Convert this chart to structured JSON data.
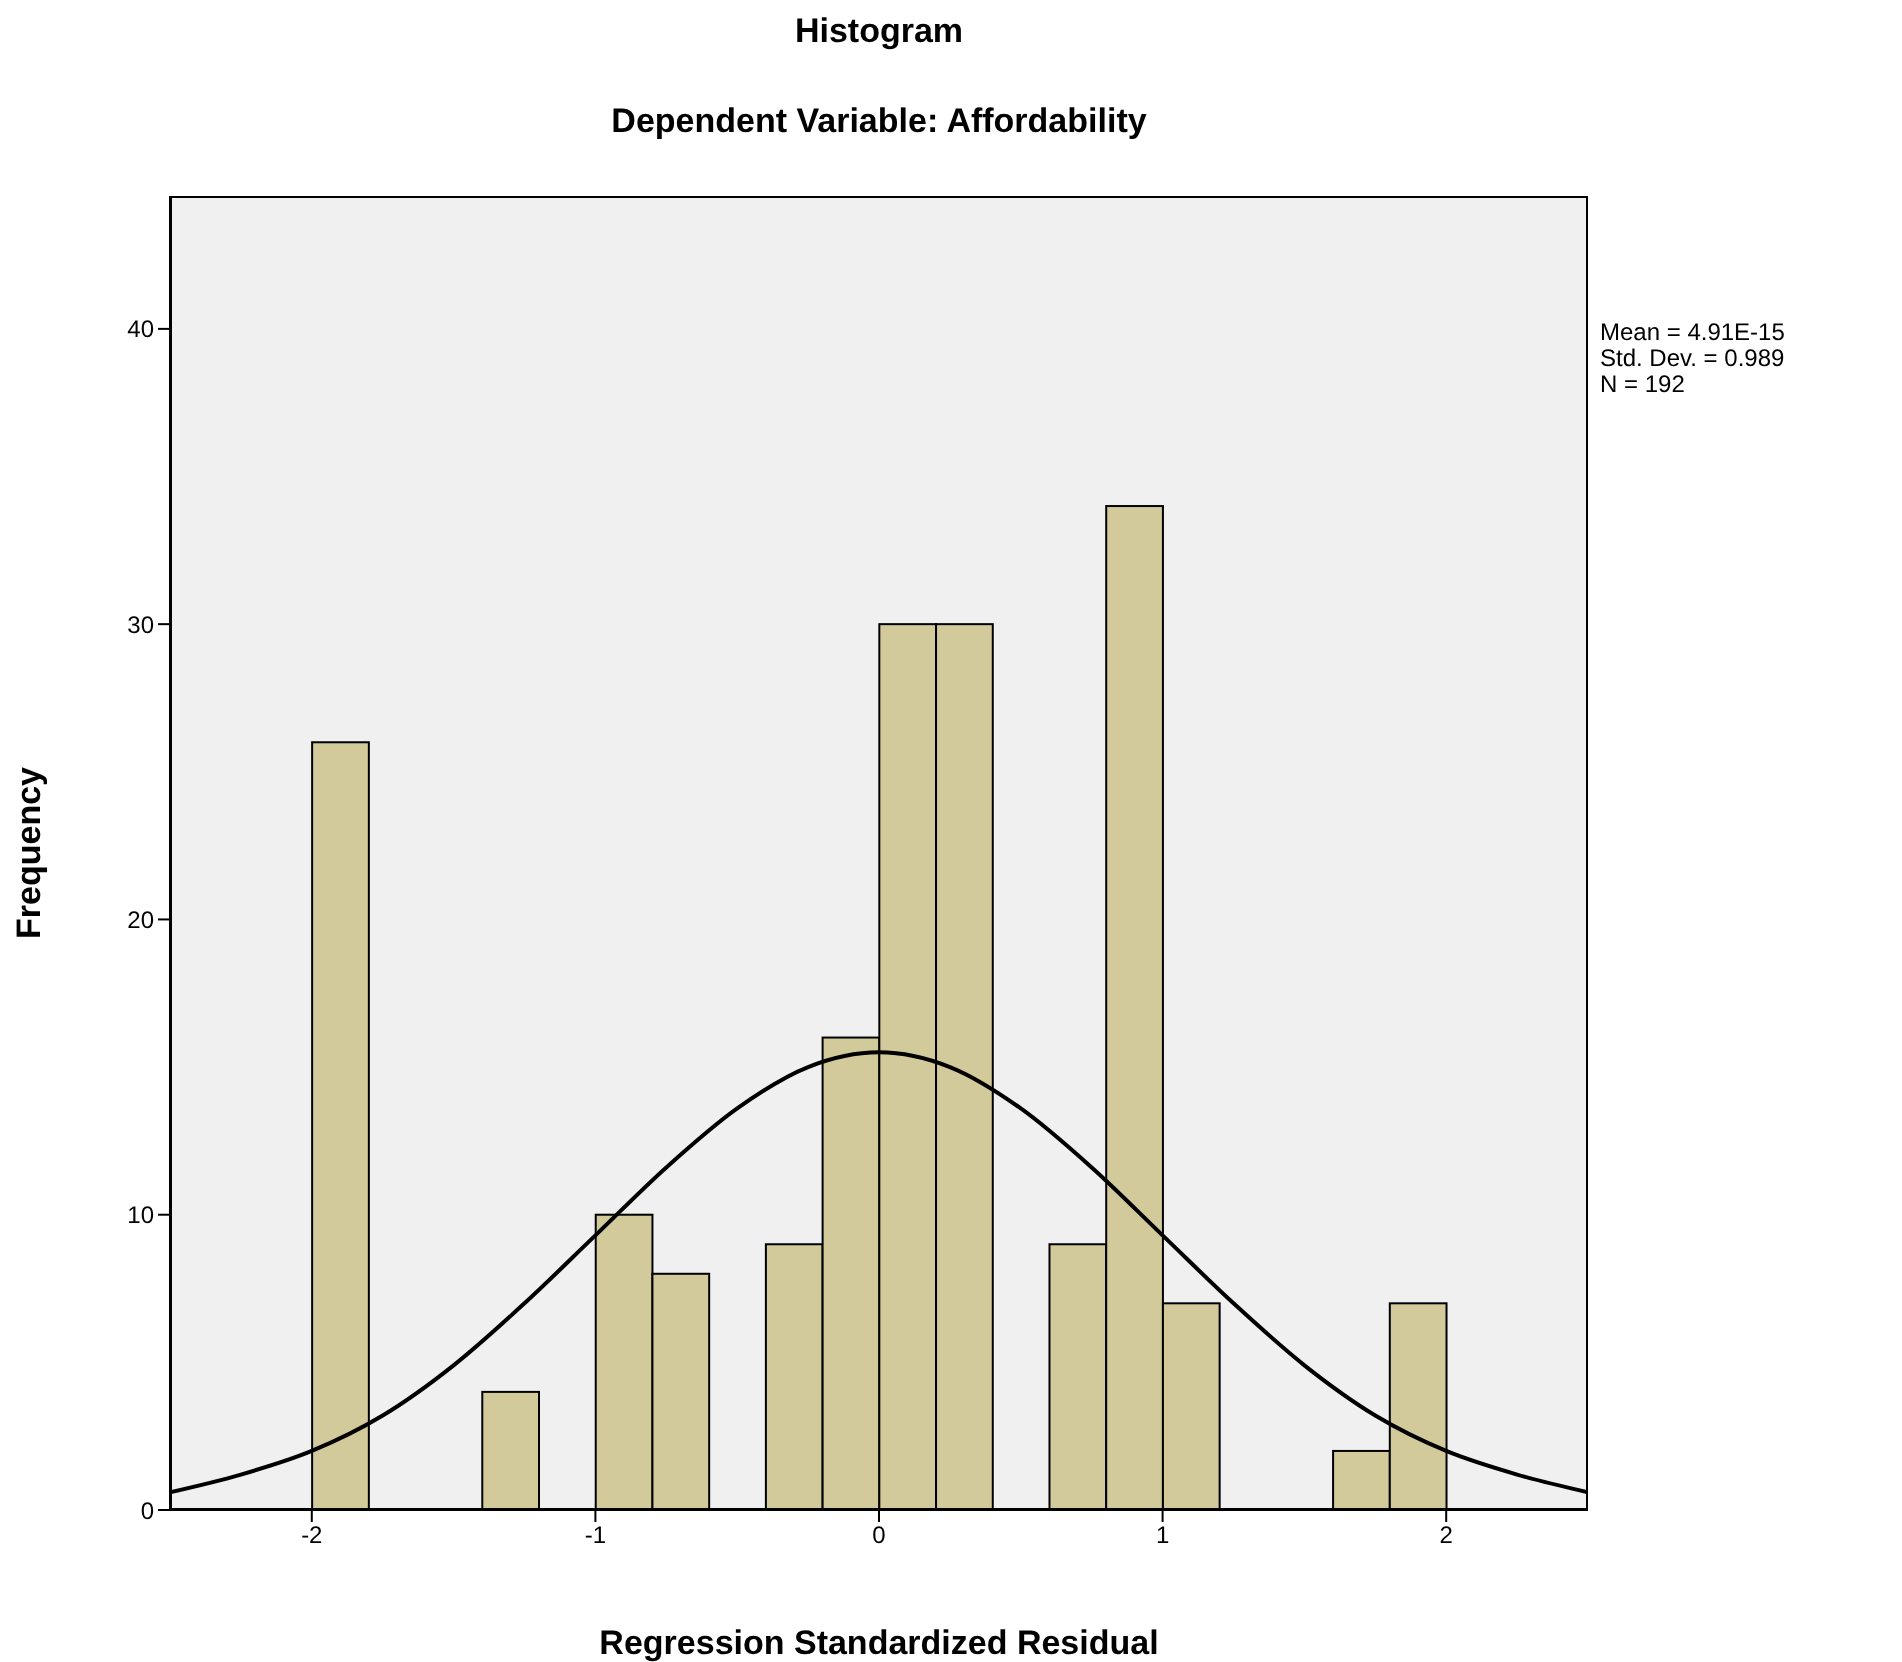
{
  "chart_data": {
    "type": "histogram",
    "title": "Histogram",
    "subtitle": "Dependent Variable: Affordability",
    "xlabel": "Regression Standardized Residual",
    "ylabel": "Frequency",
    "bins": [
      -2,
      -1.8,
      -1.6,
      -1.4,
      -1.2,
      -1,
      -0.8,
      -0.6,
      -0.4,
      -0.2,
      0,
      0.2,
      0.4,
      0.6,
      0.8,
      1,
      1.2,
      1.4,
      1.6,
      1.8,
      2
    ],
    "values": [
      26,
      0,
      0,
      4,
      0,
      10,
      8,
      0,
      9,
      16,
      30,
      30,
      0,
      9,
      34,
      7,
      0,
      0,
      2,
      7
    ],
    "color": "#d3ca9b",
    "series": [
      {
        "type": "line",
        "color": "#000000",
        "x": [
          -2.5,
          -2.25,
          -2,
          -1.75,
          -1.5,
          -1.25,
          -1,
          -0.75,
          -0.5,
          -0.25,
          0,
          0.25,
          0.5,
          0.75,
          1,
          1.25,
          1.5,
          1.75,
          2,
          2.25,
          2.5
        ],
        "values": [
          0.6,
          1.2,
          2.0,
          3.2,
          4.9,
          7.0,
          9.3,
          11.6,
          13.6,
          15.0,
          15.5,
          15.0,
          13.6,
          11.6,
          9.3,
          7.0,
          4.9,
          3.2,
          2.0,
          1.2,
          0.6
        ]
      }
    ],
    "xlim": [
      -2.5,
      2.5
    ],
    "xticks": [
      -2,
      -1,
      0,
      1,
      2
    ],
    "ylim": [
      0,
      44.5
    ],
    "yticks": [
      0,
      10,
      20,
      30,
      40
    ],
    "grid": false,
    "legend": false,
    "annotations": [
      "Mean = 4.91E-15",
      "Std. Dev. = 0.989",
      "N = 192"
    ]
  }
}
